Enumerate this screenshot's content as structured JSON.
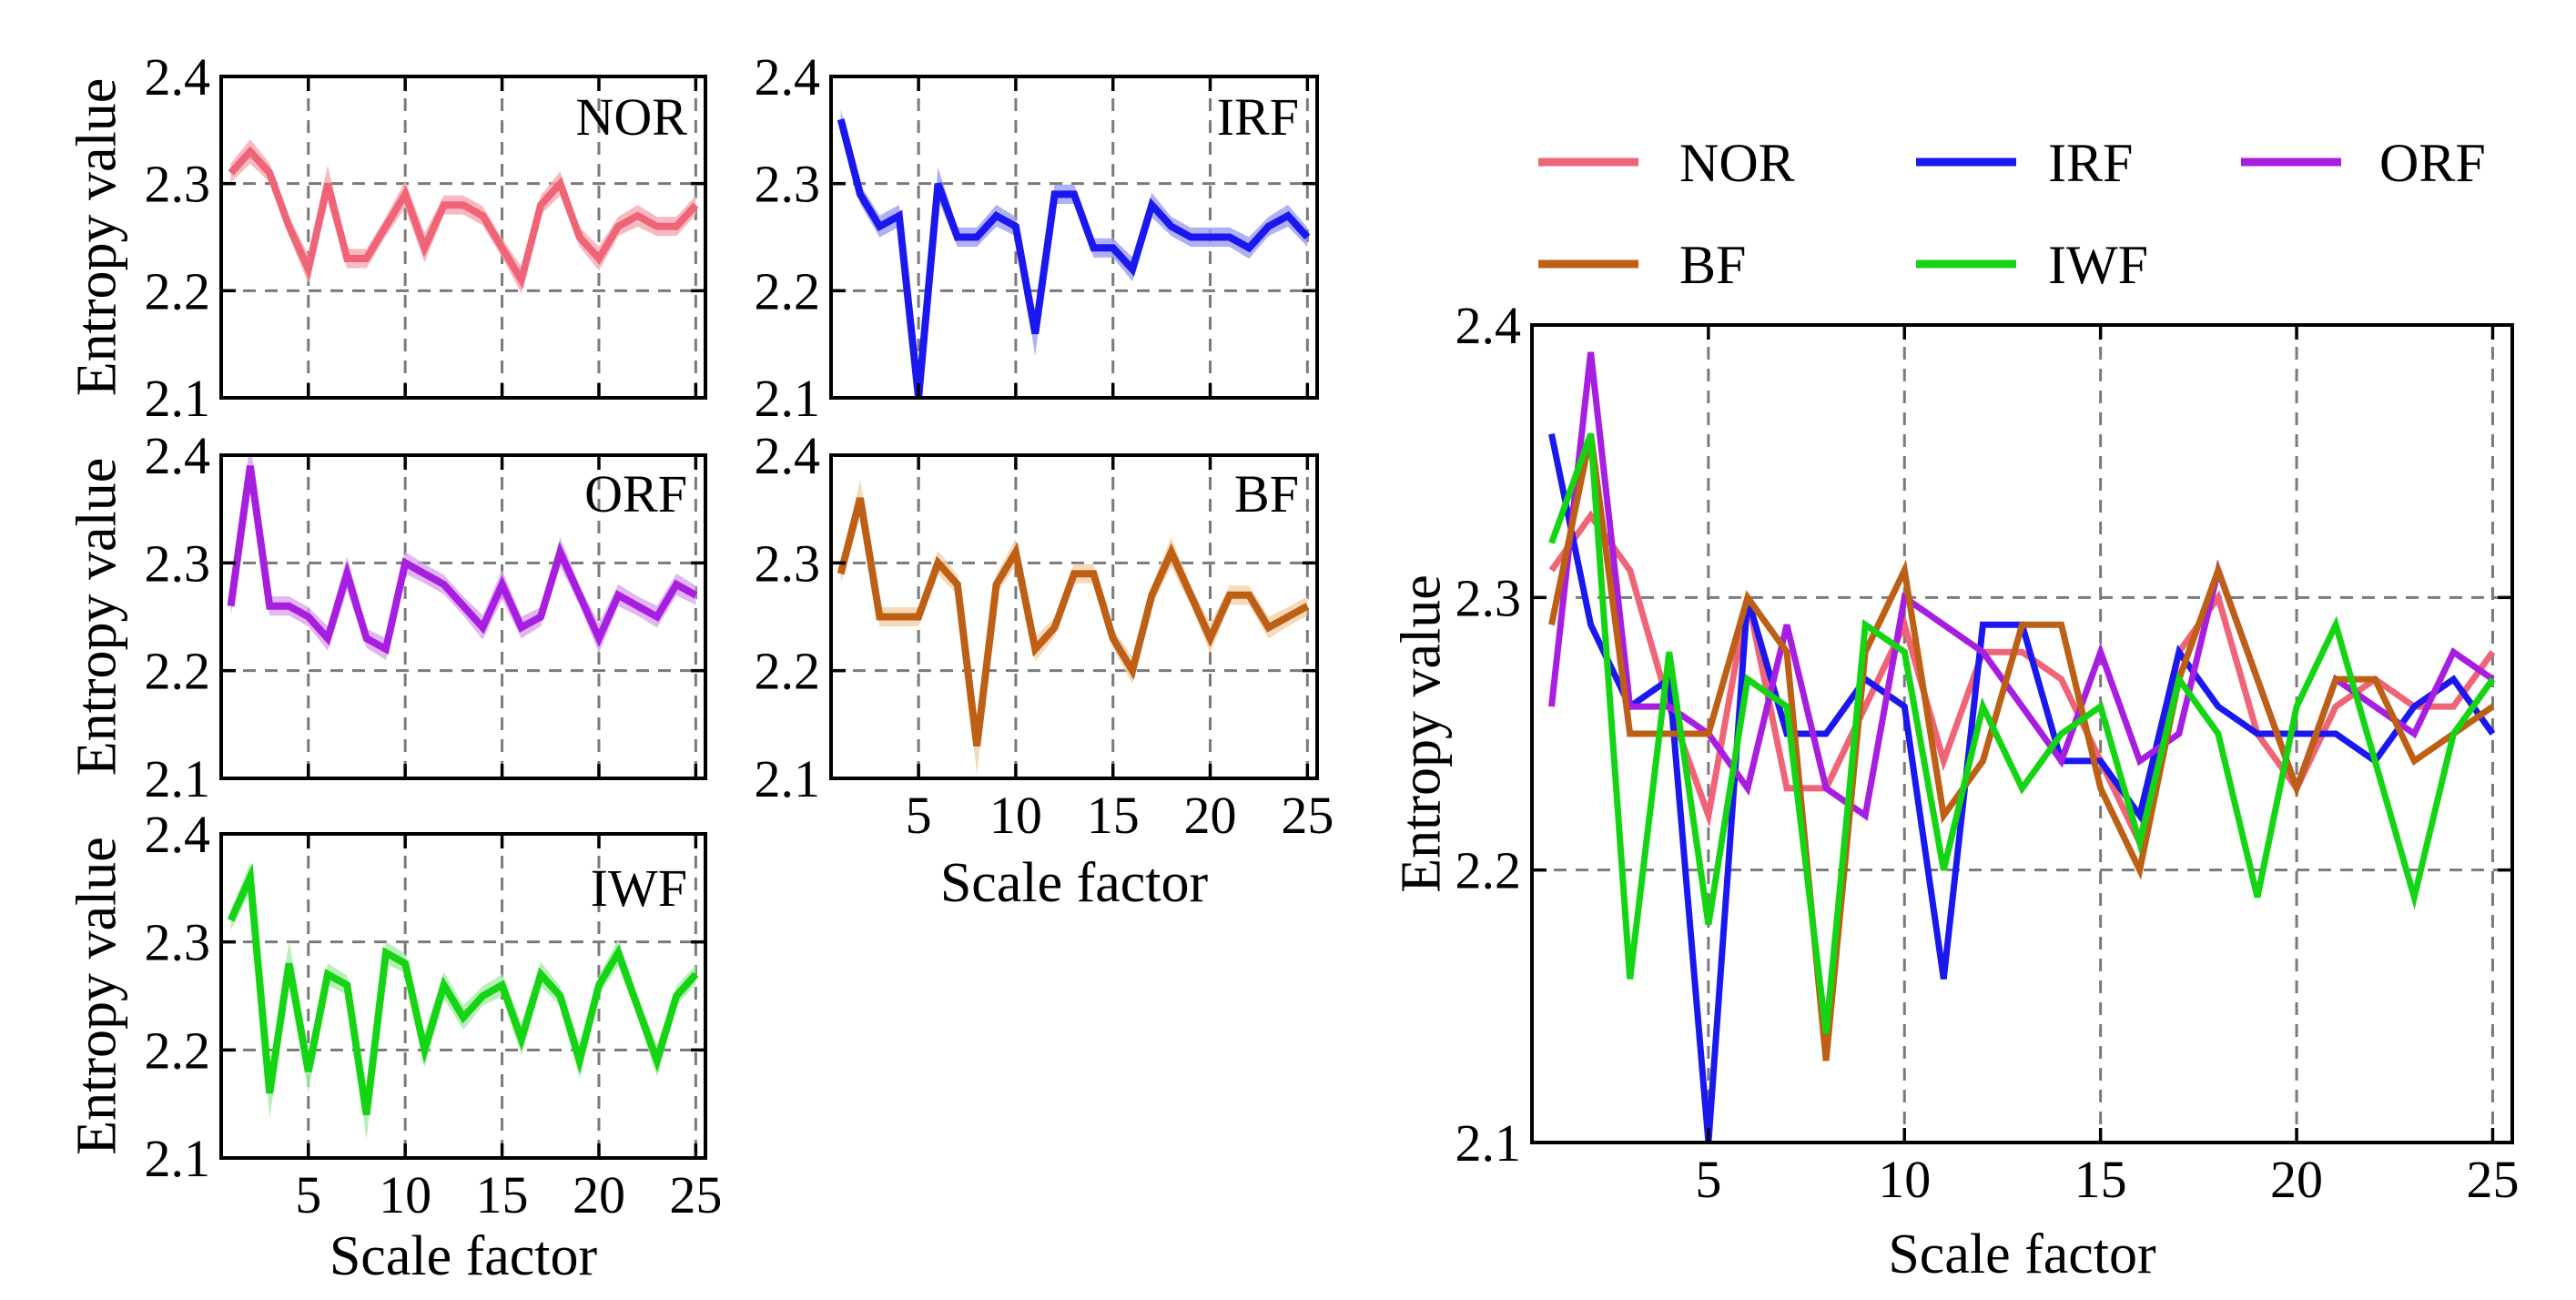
{
  "figure": {
    "xlabel": "Scale factor",
    "ylabel": "Entropy value",
    "x_ticks": [
      5,
      10,
      15,
      20,
      25
    ],
    "y_ticks": [
      "2.1",
      "2.2",
      "2.3",
      "2.4"
    ]
  },
  "legend": [
    {
      "name": "NOR",
      "color": "#f06477"
    },
    {
      "name": "IRF",
      "color": "#1a18ee"
    },
    {
      "name": "ORF",
      "color": "#a81ee0"
    },
    {
      "name": "BF",
      "color": "#bd5f14"
    },
    {
      "name": "IWF",
      "color": "#14d414"
    }
  ],
  "chart_data": [
    {
      "type": "line",
      "panel": "NOR",
      "title": "NOR",
      "band": "shaded variation band",
      "xlabel": "",
      "ylabel": "Entropy value",
      "xlim": [
        0.5,
        25.5
      ],
      "ylim": [
        2.1,
        2.4
      ],
      "color": "#f06477",
      "band_color": "#f6a9b3",
      "x": [
        1,
        2,
        3,
        4,
        5,
        6,
        7,
        8,
        9,
        10,
        11,
        12,
        13,
        14,
        15,
        16,
        17,
        18,
        19,
        20,
        21,
        22,
        23,
        24,
        25
      ],
      "values": [
        2.31,
        2.33,
        2.31,
        2.26,
        2.22,
        2.3,
        2.23,
        2.23,
        2.26,
        2.29,
        2.24,
        2.28,
        2.28,
        2.27,
        2.24,
        2.21,
        2.28,
        2.3,
        2.25,
        2.23,
        2.26,
        2.27,
        2.26,
        2.26,
        2.28
      ]
    },
    {
      "type": "line",
      "panel": "IRF",
      "title": "IRF",
      "band": "shaded variation band",
      "xlabel": "",
      "ylabel": "",
      "xlim": [
        0.5,
        25.5
      ],
      "ylim": [
        2.1,
        2.4
      ],
      "color": "#1a18ee",
      "band_color": "#9c9cf2",
      "x": [
        1,
        2,
        3,
        4,
        5,
        6,
        7,
        8,
        9,
        10,
        11,
        12,
        13,
        14,
        15,
        16,
        17,
        18,
        19,
        20,
        21,
        22,
        23,
        24,
        25
      ],
      "values": [
        2.36,
        2.29,
        2.26,
        2.27,
        2.1,
        2.3,
        2.25,
        2.25,
        2.27,
        2.26,
        2.16,
        2.29,
        2.29,
        2.24,
        2.24,
        2.22,
        2.28,
        2.26,
        2.25,
        2.25,
        2.25,
        2.24,
        2.26,
        2.27,
        2.25
      ]
    },
    {
      "type": "line",
      "panel": "ORF",
      "title": "ORF",
      "band": "shaded variation band",
      "xlabel": "",
      "ylabel": "Entropy value",
      "xlim": [
        0.5,
        25.5
      ],
      "ylim": [
        2.1,
        2.4
      ],
      "color": "#a81ee0",
      "band_color": "#d9a5f0",
      "x": [
        1,
        2,
        3,
        4,
        5,
        6,
        7,
        8,
        9,
        10,
        11,
        12,
        13,
        14,
        15,
        16,
        17,
        18,
        19,
        20,
        21,
        22,
        23,
        24,
        25
      ],
      "values": [
        2.26,
        2.39,
        2.26,
        2.26,
        2.25,
        2.23,
        2.29,
        2.23,
        2.22,
        2.3,
        2.29,
        2.28,
        2.26,
        2.24,
        2.28,
        2.24,
        2.25,
        2.31,
        2.27,
        2.23,
        2.27,
        2.26,
        2.25,
        2.28,
        2.27
      ]
    },
    {
      "type": "line",
      "panel": "BF",
      "title": "BF",
      "band": "shaded variation band",
      "xlabel": "Scale factor",
      "ylabel": "",
      "xlim": [
        0.5,
        25.5
      ],
      "ylim": [
        2.1,
        2.4
      ],
      "color": "#bd5f14",
      "band_color": "#f4cfa8",
      "x": [
        1,
        2,
        3,
        4,
        5,
        6,
        7,
        8,
        9,
        10,
        11,
        12,
        13,
        14,
        15,
        16,
        17,
        18,
        19,
        20,
        21,
        22,
        23,
        24,
        25
      ],
      "values": [
        2.29,
        2.36,
        2.25,
        2.25,
        2.25,
        2.3,
        2.28,
        2.13,
        2.28,
        2.31,
        2.22,
        2.24,
        2.29,
        2.29,
        2.23,
        2.2,
        2.27,
        2.31,
        2.27,
        2.23,
        2.27,
        2.27,
        2.24,
        2.25,
        2.26
      ]
    },
    {
      "type": "line",
      "panel": "IWF",
      "title": "IWF",
      "band": "shaded variation band",
      "xlabel": "Scale factor",
      "ylabel": "Entropy value",
      "xlim": [
        0.5,
        25.5
      ],
      "ylim": [
        2.1,
        2.4
      ],
      "color": "#14d414",
      "band_color": "#a8eca8",
      "x": [
        1,
        2,
        3,
        4,
        5,
        6,
        7,
        8,
        9,
        10,
        11,
        12,
        13,
        14,
        15,
        16,
        17,
        18,
        19,
        20,
        21,
        22,
        23,
        24,
        25
      ],
      "values": [
        2.32,
        2.36,
        2.16,
        2.28,
        2.18,
        2.27,
        2.26,
        2.14,
        2.29,
        2.28,
        2.2,
        2.26,
        2.23,
        2.25,
        2.26,
        2.21,
        2.27,
        2.25,
        2.19,
        2.26,
        2.29,
        2.24,
        2.19,
        2.25,
        2.27
      ]
    },
    {
      "type": "line",
      "panel": "combined",
      "title": "",
      "xlabel": "Scale factor",
      "ylabel": "Entropy value",
      "xlim": [
        0.5,
        25.5
      ],
      "ylim": [
        2.1,
        2.4
      ],
      "categories": [
        1,
        2,
        3,
        4,
        5,
        6,
        7,
        8,
        9,
        10,
        11,
        12,
        13,
        14,
        15,
        16,
        17,
        18,
        19,
        20,
        21,
        22,
        23,
        24,
        25
      ],
      "series": [
        {
          "name": "NOR",
          "color": "#f06477",
          "values": [
            2.31,
            2.33,
            2.31,
            2.26,
            2.22,
            2.3,
            2.23,
            2.23,
            2.26,
            2.29,
            2.24,
            2.28,
            2.28,
            2.27,
            2.24,
            2.21,
            2.28,
            2.3,
            2.25,
            2.23,
            2.26,
            2.27,
            2.26,
            2.26,
            2.28
          ]
        },
        {
          "name": "IRF",
          "color": "#1a18ee",
          "values": [
            2.36,
            2.29,
            2.26,
            2.27,
            2.1,
            2.3,
            2.25,
            2.25,
            2.27,
            2.26,
            2.16,
            2.29,
            2.29,
            2.24,
            2.24,
            2.22,
            2.28,
            2.26,
            2.25,
            2.25,
            2.25,
            2.24,
            2.26,
            2.27,
            2.25
          ]
        },
        {
          "name": "ORF",
          "color": "#a81ee0",
          "values": [
            2.26,
            2.39,
            2.26,
            2.26,
            2.25,
            2.23,
            2.29,
            2.23,
            2.22,
            2.3,
            2.29,
            2.28,
            2.26,
            2.24,
            2.28,
            2.24,
            2.25,
            2.31,
            2.27,
            2.23,
            2.27,
            2.26,
            2.25,
            2.28,
            2.27
          ]
        },
        {
          "name": "BF",
          "color": "#bd5f14",
          "values": [
            2.29,
            2.36,
            2.25,
            2.25,
            2.25,
            2.3,
            2.28,
            2.13,
            2.28,
            2.31,
            2.22,
            2.24,
            2.29,
            2.29,
            2.23,
            2.2,
            2.27,
            2.31,
            2.27,
            2.23,
            2.27,
            2.27,
            2.24,
            2.25,
            2.26
          ]
        },
        {
          "name": "IWF",
          "color": "#14d414",
          "values": [
            2.32,
            2.36,
            2.16,
            2.28,
            2.18,
            2.27,
            2.26,
            2.14,
            2.29,
            2.28,
            2.2,
            2.26,
            2.23,
            2.25,
            2.26,
            2.21,
            2.27,
            2.25,
            2.19,
            2.26,
            2.29,
            2.24,
            2.19,
            2.25,
            2.27
          ]
        }
      ]
    }
  ]
}
